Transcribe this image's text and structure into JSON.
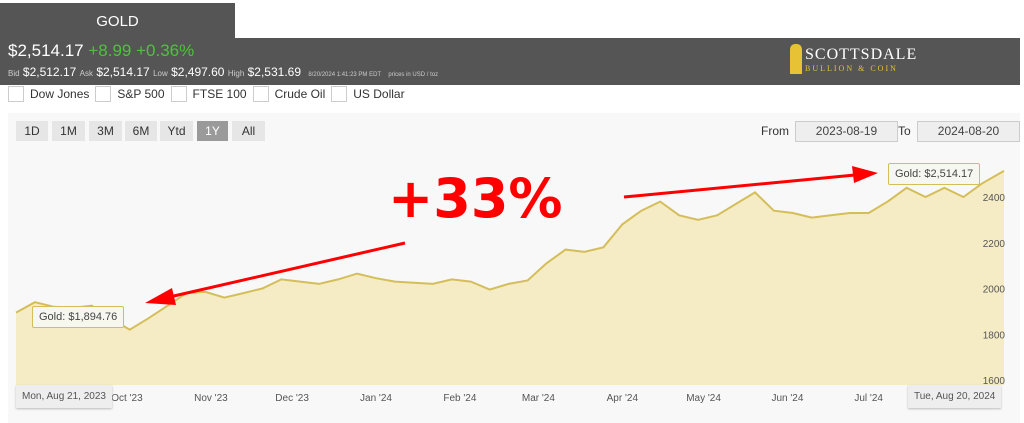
{
  "header": {
    "tab": "GOLD",
    "price": "$2,514.17",
    "change": "+8.99",
    "change_pct": "+0.36%",
    "bid_label": "Bid",
    "bid": "$2,512.17",
    "ask_label": "Ask",
    "ask": "$2,514.17",
    "low_label": "Low",
    "low": "$2,497.60",
    "high_label": "High",
    "high": "$2,531.69",
    "timestamp": "8/20/2024 1:41:23 PM EDT",
    "units": "prices in USD / toz",
    "logo_line1": "SCOTTSDALE",
    "logo_line2": "BULLION & COIN"
  },
  "compare": [
    "Dow Jones",
    "S&P 500",
    "FTSE 100",
    "Crude Oil",
    "US Dollar"
  ],
  "ranges": [
    "1D",
    "1M",
    "3M",
    "6M",
    "Ytd",
    "1Y",
    "All"
  ],
  "active_range": "1Y",
  "from_label": "From",
  "from": "2023-08-19",
  "to_label": "To",
  "to": "2024-08-20",
  "annotation": "+33%",
  "tooltips": {
    "start": "Gold: $1,894.76",
    "end": "Gold: $2,514.17",
    "start_date": "Mon, Aug 21, 2023",
    "end_date": "Tue, Aug 20, 2024"
  },
  "colors": {
    "line": "#d4be5a",
    "fill": "#f5ecc5",
    "annotation": "#ff0000",
    "up": "#4cc43a"
  },
  "chart_data": {
    "type": "area",
    "series": [
      {
        "name": "Gold",
        "x": [
          "2023-08-21",
          "2023-08-28",
          "2023-09-04",
          "2023-09-11",
          "2023-09-18",
          "2023-09-25",
          "2023-10-02",
          "2023-10-09",
          "2023-10-16",
          "2023-10-23",
          "2023-10-30",
          "2023-11-06",
          "2023-11-13",
          "2023-11-20",
          "2023-11-27",
          "2023-12-04",
          "2023-12-11",
          "2023-12-18",
          "2023-12-25",
          "2024-01-01",
          "2024-01-08",
          "2024-01-15",
          "2024-01-22",
          "2024-01-29",
          "2024-02-05",
          "2024-02-12",
          "2024-02-19",
          "2024-02-26",
          "2024-03-04",
          "2024-03-11",
          "2024-03-18",
          "2024-03-25",
          "2024-04-01",
          "2024-04-08",
          "2024-04-15",
          "2024-04-22",
          "2024-04-29",
          "2024-05-06",
          "2024-05-13",
          "2024-05-20",
          "2024-05-27",
          "2024-06-03",
          "2024-06-10",
          "2024-06-17",
          "2024-06-24",
          "2024-07-01",
          "2024-07-08",
          "2024-07-15",
          "2024-07-22",
          "2024-07-29",
          "2024-08-05",
          "2024-08-12",
          "2024-08-20"
        ],
        "y": [
          1894.76,
          1940,
          1920,
          1915,
          1925,
          1870,
          1820,
          1870,
          1925,
          1980,
          1985,
          1960,
          1980,
          2000,
          2040,
          2030,
          2020,
          2040,
          2065,
          2045,
          2030,
          2025,
          2020,
          2040,
          2030,
          1995,
          2020,
          2035,
          2110,
          2170,
          2160,
          2180,
          2280,
          2340,
          2380,
          2320,
          2300,
          2320,
          2370,
          2420,
          2340,
          2330,
          2310,
          2320,
          2330,
          2330,
          2380,
          2440,
          2400,
          2440,
          2400,
          2460,
          2514.17
        ]
      }
    ],
    "x_ticks": [
      "Oct '23",
      "Nov '23",
      "Dec '23",
      "Jan '24",
      "Feb '24",
      "Mar '24",
      "Apr '24",
      "May '24",
      "Jun '24",
      "Jul '24"
    ],
    "x_tick_dates": [
      "2023-10-01",
      "2023-11-01",
      "2023-12-01",
      "2024-01-01",
      "2024-02-01",
      "2024-03-01",
      "2024-04-01",
      "2024-05-01",
      "2024-06-01",
      "2024-07-01"
    ],
    "y_ticks": [
      1600,
      1800,
      2000,
      2200,
      2400
    ],
    "ylim": [
      1600,
      2500
    ],
    "grid": false,
    "legend": "none"
  }
}
